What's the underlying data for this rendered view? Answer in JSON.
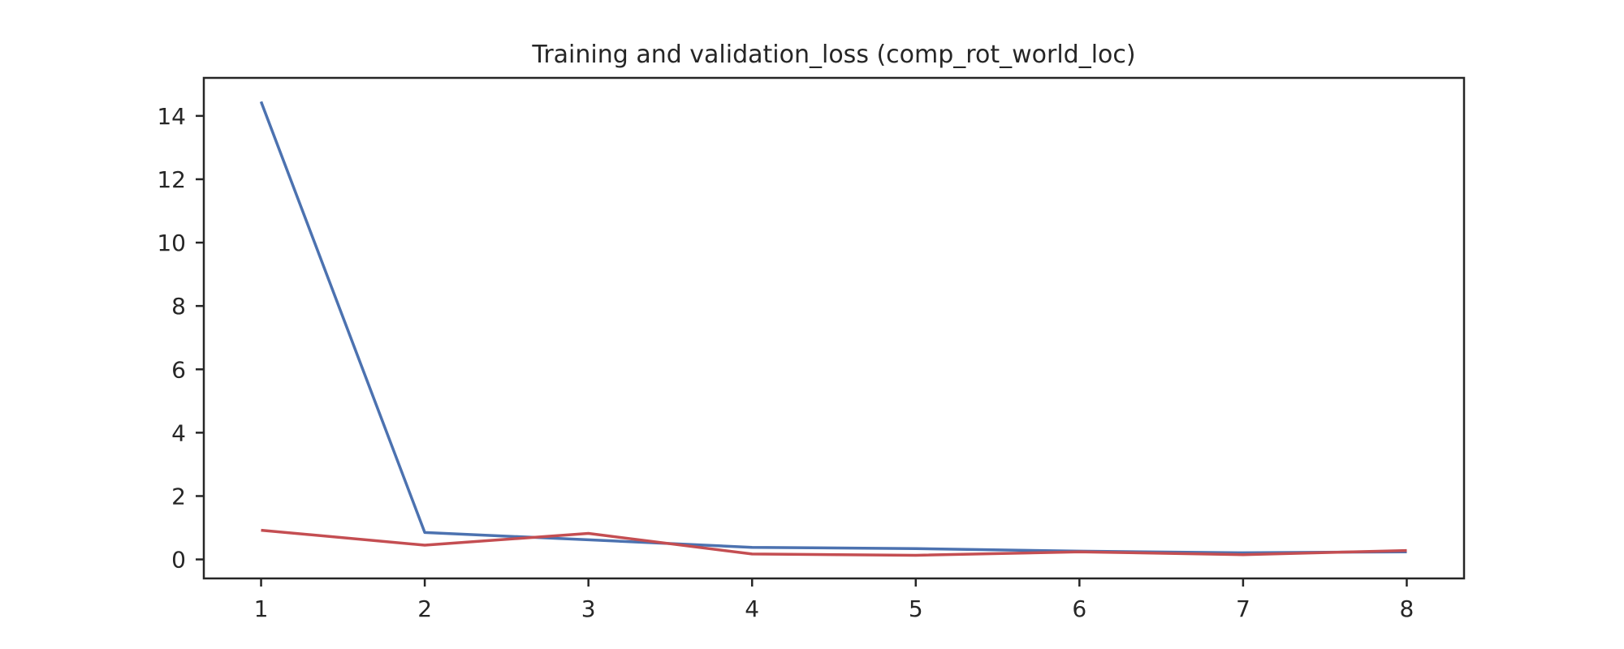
{
  "chart_data": {
    "type": "line",
    "title": "Training and validation_loss (comp_rot_world_loc)",
    "xlabel": "",
    "ylabel": "",
    "x": [
      1,
      2,
      3,
      4,
      5,
      6,
      7,
      8
    ],
    "xlim": [
      0.65,
      8.35
    ],
    "ylim": [
      -0.6,
      15.2
    ],
    "xticks": [
      1,
      2,
      3,
      4,
      5,
      6,
      7,
      8
    ],
    "yticks": [
      0,
      2,
      4,
      6,
      8,
      10,
      12,
      14
    ],
    "grid": false,
    "series": [
      {
        "color": "#4c72b0",
        "values": [
          14.45,
          0.85,
          0.62,
          0.38,
          0.34,
          0.26,
          0.21,
          0.24
        ]
      },
      {
        "color": "#c44e52",
        "values": [
          0.92,
          0.45,
          0.82,
          0.17,
          0.13,
          0.24,
          0.15,
          0.28
        ]
      }
    ]
  }
}
